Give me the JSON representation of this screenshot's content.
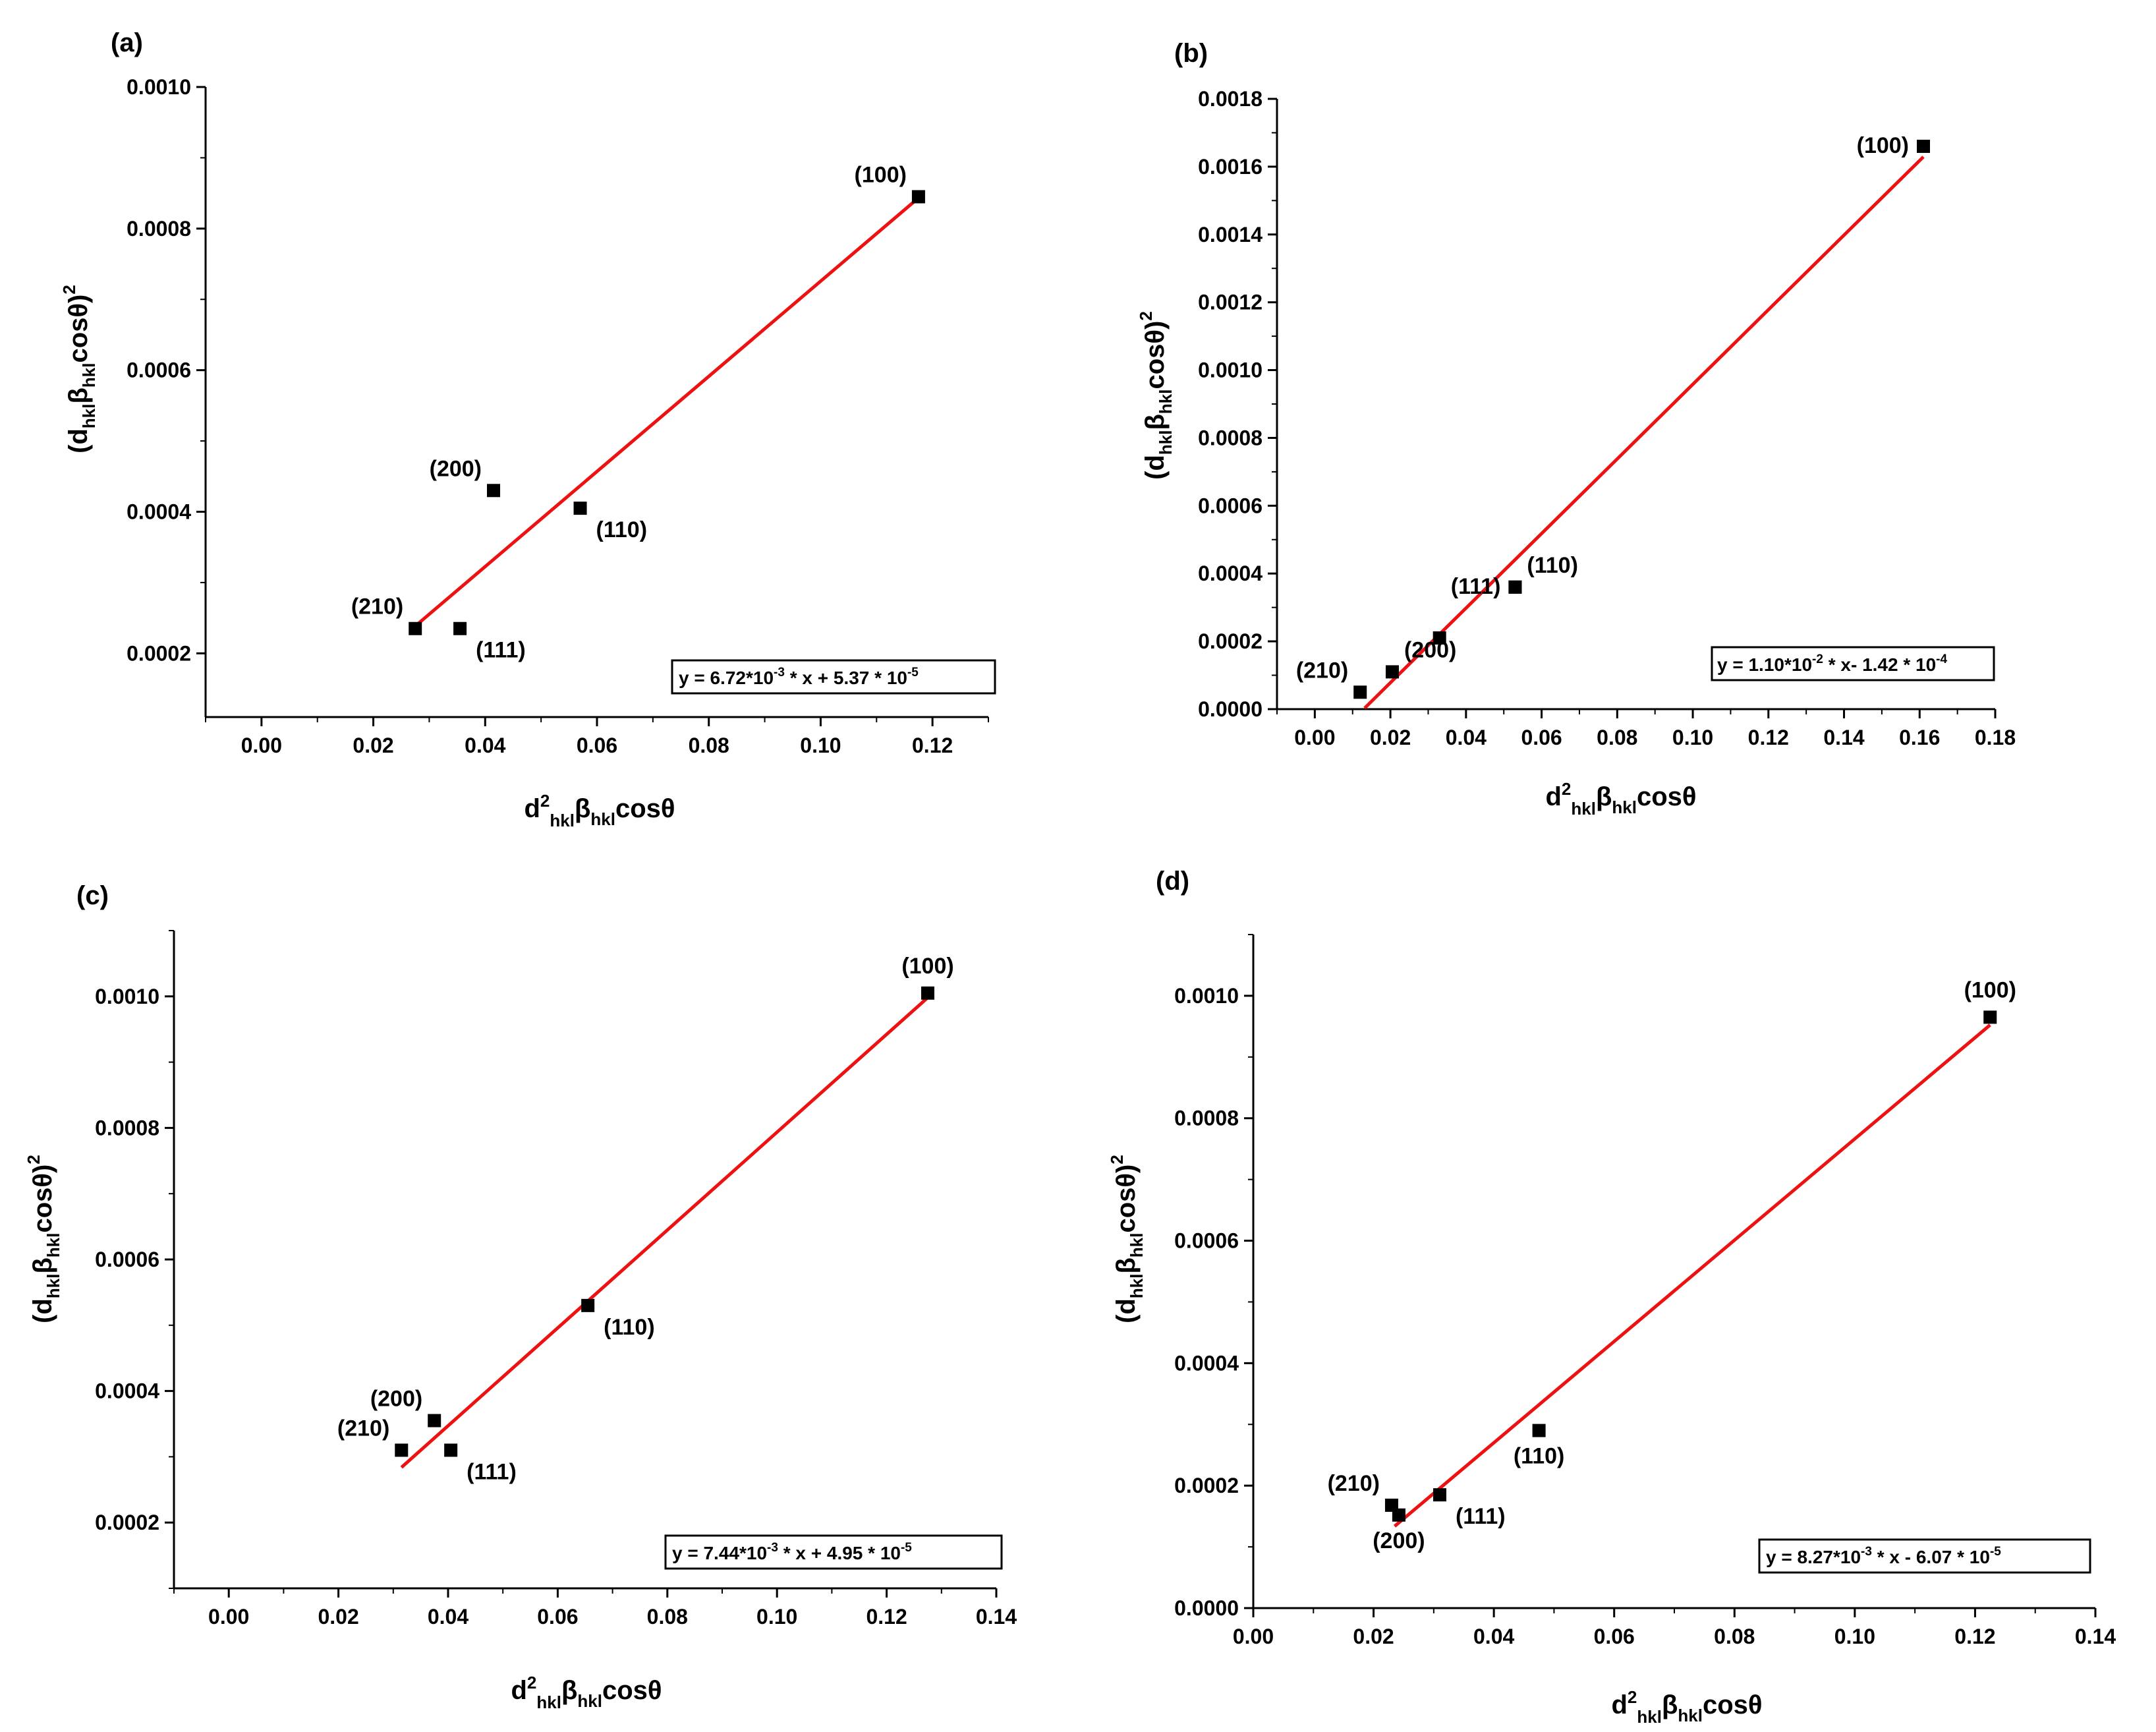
{
  "figure": {
    "xlabel": {
      "main": "d",
      "sup": "2",
      "sub1": "hkl",
      "beta": "β",
      "sub2": "hkl",
      "tail": "cosθ"
    },
    "ylabel": {
      "open": "(d",
      "sub1": "hkl",
      "beta": "β",
      "sub2": "hkl",
      "tail": "cosθ)",
      "sup": "2"
    }
  },
  "colors": {
    "fit": "#ee1111",
    "points": "#000000",
    "axis": "#000000"
  },
  "chart_data": [
    {
      "panel": "(a)",
      "type": "scatter",
      "xlim": [
        -0.01,
        0.13
      ],
      "ylim": [
        0.00011,
        0.001
      ],
      "xticks": [
        0,
        0.02,
        0.04,
        0.06,
        0.08,
        0.1,
        0.12
      ],
      "xtick_labels": [
        "0.00",
        "0.02",
        "0.04",
        "0.06",
        "0.08",
        "0.10",
        "0.12"
      ],
      "yticks": [
        0.0002,
        0.0004,
        0.0006,
        0.0008,
        0.001
      ],
      "ytick_labels": [
        "0.0002",
        "0.0004",
        "0.0006",
        "0.0008",
        "0.0010"
      ],
      "points": [
        {
          "label": "(100)",
          "x": 0.1175,
          "y": 0.000845,
          "pos": "upper-left"
        },
        {
          "label": "(200)",
          "x": 0.0415,
          "y": 0.00043,
          "pos": "upper-left"
        },
        {
          "label": "(110)",
          "x": 0.057,
          "y": 0.000405,
          "pos": "lower-right"
        },
        {
          "label": "(210)",
          "x": 0.0275,
          "y": 0.000235,
          "pos": "upper-left"
        },
        {
          "label": "(111)",
          "x": 0.0355,
          "y": 0.000235,
          "pos": "lower-right"
        }
      ],
      "fit": {
        "slope": 0.00672,
        "intercept": 5.37e-05,
        "x_range": [
          0.0275,
          0.1175
        ]
      },
      "equation": {
        "a": "y = 6.72*10",
        "a_exp": "-3",
        "b": " * x + 5.37 * 10",
        "b_exp": "-5"
      }
    },
    {
      "panel": "(b)",
      "type": "scatter",
      "xlim": [
        -0.01,
        0.18
      ],
      "ylim": [
        0,
        0.0018
      ],
      "xticks": [
        0,
        0.02,
        0.04,
        0.06,
        0.08,
        0.1,
        0.12,
        0.14,
        0.16,
        0.18
      ],
      "xtick_labels": [
        "0.00",
        "0.02",
        "0.04",
        "0.06",
        "0.08",
        "0.10",
        "0.12",
        "0.14",
        "0.16",
        "0.18"
      ],
      "yticks": [
        0,
        0.0002,
        0.0004,
        0.0006,
        0.0008,
        0.001,
        0.0012,
        0.0014,
        0.0016,
        0.0018
      ],
      "ytick_labels": [
        "0.0000",
        "0.0002",
        "0.0004",
        "0.0006",
        "0.0008",
        "0.0010",
        "0.0012",
        "0.0014",
        "0.0016",
        "0.0018"
      ],
      "points": [
        {
          "label": "(100)",
          "x": 0.161,
          "y": 0.00166,
          "pos": "left"
        },
        {
          "label": "(110)",
          "x": 0.053,
          "y": 0.00036,
          "pos": "upper-right"
        },
        {
          "label": "(111)",
          "x": 0.053,
          "y": 0.00036,
          "pos": "left"
        },
        {
          "label": "(200)",
          "x": 0.0205,
          "y": 0.00011,
          "pos": "upper-right"
        },
        {
          "label": "(210)",
          "x": 0.012,
          "y": 5e-05,
          "pos": "upper-left"
        },
        {
          "label": "",
          "x": 0.033,
          "y": 0.00021,
          "pos": "none"
        }
      ],
      "fit": {
        "slope": 0.011,
        "intercept": -0.000142,
        "x_range": [
          0.0132,
          0.161
        ]
      },
      "equation": {
        "a": "y = 1.10*10",
        "a_exp": "-2",
        "b": " * x- 1.42 * 10",
        "b_exp": "-4"
      }
    },
    {
      "panel": "(c)",
      "type": "scatter",
      "xlim": [
        -0.01,
        0.14
      ],
      "ylim": [
        0.0001,
        0.0011
      ],
      "xticks": [
        0,
        0.02,
        0.04,
        0.06,
        0.08,
        0.1,
        0.12,
        0.14
      ],
      "xtick_labels": [
        "0.00",
        "0.02",
        "0.04",
        "0.06",
        "0.08",
        "0.10",
        "0.12",
        "0.14"
      ],
      "yticks": [
        0.0002,
        0.0004,
        0.0006,
        0.0008,
        0.001
      ],
      "ytick_labels": [
        "0.0002",
        "0.0004",
        "0.0006",
        "0.0008",
        "0.0010"
      ],
      "points": [
        {
          "label": "(100)",
          "x": 0.1275,
          "y": 0.001005,
          "pos": "above"
        },
        {
          "label": "(110)",
          "x": 0.0655,
          "y": 0.00053,
          "pos": "lower-right"
        },
        {
          "label": "(200)",
          "x": 0.0375,
          "y": 0.000355,
          "pos": "upper-left"
        },
        {
          "label": "(210)",
          "x": 0.0315,
          "y": 0.00031,
          "pos": "upper-left"
        },
        {
          "label": "(111)",
          "x": 0.0405,
          "y": 0.00031,
          "pos": "lower-right"
        }
      ],
      "fit": {
        "slope": 0.00744,
        "intercept": 4.95e-05,
        "x_range": [
          0.0315,
          0.1275
        ]
      },
      "equation": {
        "a": "y = 7.44*10",
        "a_exp": "-3",
        "b": " * x + 4.95 * 10",
        "b_exp": "-5"
      }
    },
    {
      "panel": "(d)",
      "type": "scatter",
      "xlim": [
        0,
        0.14
      ],
      "ylim": [
        0,
        0.0011
      ],
      "xticks": [
        0,
        0.02,
        0.04,
        0.06,
        0.08,
        0.1,
        0.12,
        0.14
      ],
      "xtick_labels": [
        "0.00",
        "0.02",
        "0.04",
        "0.06",
        "0.08",
        "0.10",
        "0.12",
        "0.14"
      ],
      "yticks": [
        0,
        0.0002,
        0.0004,
        0.0006,
        0.0008,
        0.001
      ],
      "ytick_labels": [
        "0.0000",
        "0.0002",
        "0.0004",
        "0.0006",
        "0.0008",
        "0.0010"
      ],
      "points": [
        {
          "label": "(100)",
          "x": 0.1225,
          "y": 0.000965,
          "pos": "above"
        },
        {
          "label": "(110)",
          "x": 0.0475,
          "y": 0.00029,
          "pos": "below"
        },
        {
          "label": "(210)",
          "x": 0.023,
          "y": 0.000168,
          "pos": "upper-left"
        },
        {
          "label": "(200)",
          "x": 0.0242,
          "y": 0.000152,
          "pos": "below"
        },
        {
          "label": "(111)",
          "x": 0.031,
          "y": 0.000185,
          "pos": "lower-right"
        }
      ],
      "fit": {
        "slope": 0.00827,
        "intercept": -6.07e-05,
        "x_range": [
          0.0235,
          0.1225
        ]
      },
      "equation": {
        "a": "y = 8.27*10",
        "a_exp": "-3",
        "b": " * x - 6.07 * 10",
        "b_exp": "-5"
      }
    }
  ]
}
